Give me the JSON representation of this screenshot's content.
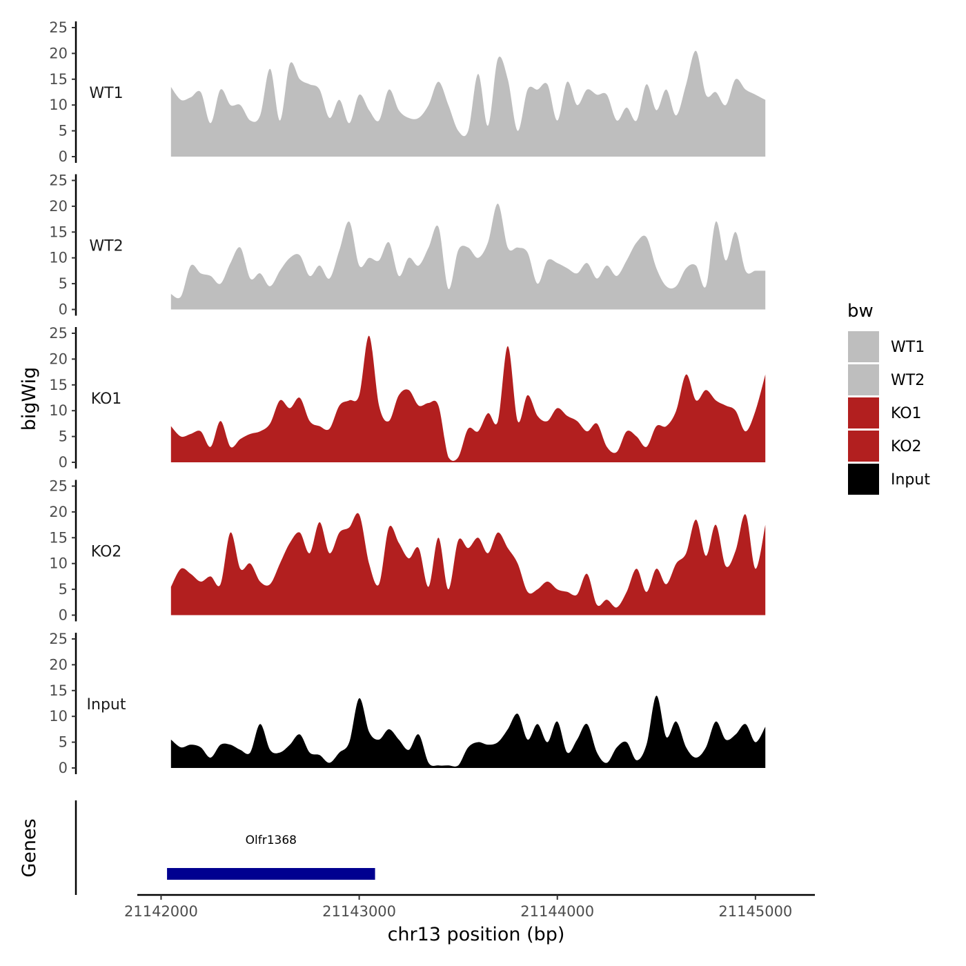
{
  "chart_data": {
    "type": "area",
    "layout": "stacked-tracks",
    "ylabel": "bigWig",
    "xlabel": "chr13 position (bp)",
    "ylim": [
      0,
      25
    ],
    "yticks": [
      0,
      5,
      10,
      15,
      20,
      25
    ],
    "xlim": [
      21141880,
      21145300
    ],
    "xticks": [
      21142000,
      21143000,
      21144000,
      21145000
    ],
    "x": [
      21142050,
      21142100,
      21142150,
      21142200,
      21142250,
      21142300,
      21142350,
      21142400,
      21142450,
      21142500,
      21142550,
      21142600,
      21142650,
      21142700,
      21142750,
      21142800,
      21142850,
      21142900,
      21142950,
      21143000,
      21143050,
      21143100,
      21143150,
      21143200,
      21143250,
      21143300,
      21143350,
      21143400,
      21143450,
      21143500,
      21143550,
      21143600,
      21143650,
      21143700,
      21143750,
      21143800,
      21143850,
      21143900,
      21143950,
      21144000,
      21144050,
      21144100,
      21144150,
      21144200,
      21144250,
      21144300,
      21144350,
      21144400,
      21144450,
      21144500,
      21144550,
      21144600,
      21144650,
      21144700,
      21144750,
      21144800,
      21144850,
      21144900,
      21144950,
      21145000,
      21145050
    ],
    "series": [
      {
        "name": "WT1",
        "color": "#bebebe",
        "values": [
          13.5,
          11,
          11.5,
          12.5,
          6.5,
          13,
          10,
          10,
          7,
          8,
          17,
          7,
          18,
          15,
          14,
          13,
          7.5,
          11,
          6.5,
          12,
          9,
          7,
          13,
          9,
          7.5,
          7.5,
          10,
          14.5,
          10,
          5,
          5,
          16,
          6,
          19,
          15,
          5,
          13,
          13,
          14,
          7,
          14.5,
          10,
          13,
          12,
          12,
          7,
          9.5,
          7,
          14,
          9,
          13,
          8,
          14,
          20.5,
          12,
          12.5,
          10,
          15,
          13,
          12,
          11
        ]
      },
      {
        "name": "WT2",
        "color": "#bebebe",
        "values": [
          3,
          2.5,
          8.5,
          7,
          6.5,
          5,
          9,
          12,
          6,
          7,
          4.5,
          7.5,
          10,
          10.5,
          6.5,
          8.5,
          6,
          11.5,
          17,
          8.5,
          10,
          9.5,
          13,
          6.5,
          10,
          8.5,
          12,
          16,
          4,
          11.5,
          12,
          10,
          13,
          20.5,
          12,
          12,
          11,
          5,
          9.5,
          9,
          8,
          7,
          9,
          6,
          8.5,
          6.5,
          9.5,
          13,
          14,
          8,
          4.5,
          4.5,
          8,
          8.5,
          4.5,
          17,
          9.5,
          15,
          7.5,
          7.5,
          7.5
        ]
      },
      {
        "name": "KO1",
        "color": "#b21f1f",
        "values": [
          7,
          5,
          5.5,
          6,
          3,
          8,
          3,
          4.5,
          5.5,
          6,
          7.5,
          12,
          10.5,
          12.5,
          8,
          7,
          6.5,
          11,
          12,
          13,
          24.5,
          11,
          8,
          13,
          14,
          11,
          11.5,
          11,
          1,
          1,
          6.5,
          6,
          9.5,
          8,
          22.5,
          8,
          13,
          9,
          8,
          10.5,
          9,
          8,
          6,
          7.5,
          3,
          2,
          6,
          5,
          3,
          7,
          7,
          10,
          17,
          12,
          14,
          12,
          11,
          10,
          6,
          10,
          17
        ]
      },
      {
        "name": "KO2",
        "color": "#b21f1f",
        "values": [
          5.5,
          9,
          8,
          6.5,
          7.5,
          6,
          16,
          9,
          10,
          6.5,
          6,
          10,
          14,
          16,
          12,
          18,
          12,
          16,
          17,
          19.5,
          10,
          6,
          17,
          14,
          11,
          13,
          5.5,
          15,
          5,
          14.5,
          13,
          15,
          12,
          16,
          13,
          10,
          4.5,
          5,
          6.5,
          5,
          4.5,
          4,
          8,
          2,
          3,
          1.5,
          4.5,
          9,
          4.5,
          9,
          6,
          10,
          12,
          18.5,
          11.5,
          17.5,
          9.5,
          12.5,
          19.5,
          9,
          17.5
        ]
      },
      {
        "name": "Input",
        "color": "#000000",
        "values": [
          5.5,
          4,
          4.5,
          4,
          2,
          4.5,
          4.5,
          3.5,
          3,
          8.5,
          3.5,
          3,
          4.5,
          6.5,
          3,
          2.5,
          1,
          3,
          5,
          13.5,
          7,
          5.5,
          7.5,
          5.5,
          3.5,
          6.5,
          1,
          0.5,
          0.5,
          0.5,
          4,
          5,
          4.5,
          5,
          7.5,
          10.5,
          5.5,
          8.5,
          5,
          9,
          3,
          5.5,
          8.5,
          3,
          1,
          4,
          5,
          1.5,
          4.5,
          14,
          6,
          9,
          4,
          2,
          4,
          9,
          5.5,
          6.5,
          8.5,
          5,
          8
        ]
      }
    ],
    "genes_track": {
      "label": "Genes",
      "genes": [
        {
          "name": "Olfr1368",
          "start": 21142030,
          "end": 21143080,
          "color": "#000090"
        }
      ]
    },
    "legend": {
      "title": "bw",
      "position": "right",
      "entries": [
        {
          "label": "WT1",
          "color": "#bebebe"
        },
        {
          "label": "WT2",
          "color": "#bebebe"
        },
        {
          "label": "KO1",
          "color": "#b21f1f"
        },
        {
          "label": "KO2",
          "color": "#b21f1f"
        },
        {
          "label": "Input",
          "color": "#000000"
        }
      ]
    }
  }
}
